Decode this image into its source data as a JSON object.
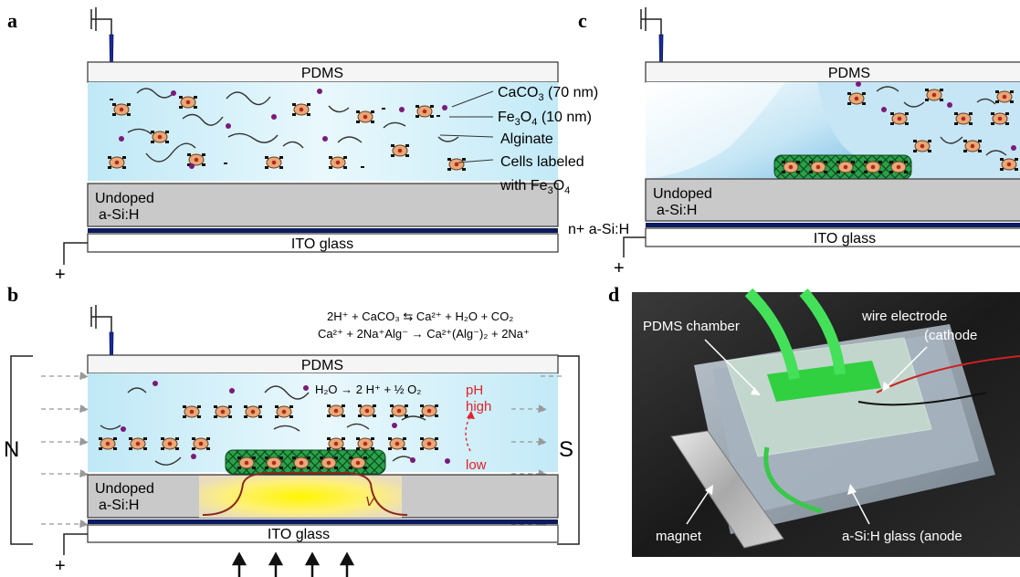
{
  "panels": {
    "a": "a",
    "b": "b",
    "c": "c",
    "d": "d"
  },
  "panel_a": {
    "pdms": "PDMS",
    "undoped_line1": "Undoped",
    "undoped_line2": "a-Si:H",
    "ito": "ITO glass",
    "n_plus": "n+ a-Si:H",
    "legend_caco3_base": "CaCO",
    "legend_caco3_sub": "3",
    "legend_caco3_rest": " (70 nm)",
    "legend_fe_base": "Fe",
    "legend_fe_sub1": "3",
    "legend_fe_mid": "O",
    "legend_fe_sub2": "4",
    "legend_fe_rest": " (10 nm)",
    "legend_alginate": "Alginate",
    "legend_cells_line1": "Cells labeled",
    "legend_cells_line2_base": "with Fe",
    "legend_cells_line2_sub1": "3",
    "legend_cells_line2_mid": "O",
    "legend_cells_line2_sub2": "4",
    "plus": "+"
  },
  "panel_b": {
    "pdms": "PDMS",
    "undoped_line1": "Undoped",
    "undoped_line2": "a-Si:H",
    "ito": "ITO glass",
    "north": "N",
    "south": "S",
    "reaction_water": "H₂O → 2 H⁺ + ½ O₂",
    "eq1": "2H⁺ + CaCO₃ ⇆ Ca²⁺ + H₂O + CO₂",
    "eq2": "Ca²⁺ + 2Na⁺Alg⁻ → Ca²⁺(Alg⁻)₂ + 2Na⁺",
    "ph_label": "pH",
    "high_label": "high",
    "low_label": "low",
    "v_label": "V",
    "plus": "+"
  },
  "panel_c": {
    "pdms": "PDMS",
    "undoped_line1": "Undoped",
    "undoped_line2": "a-Si:H",
    "ito": "ITO glass",
    "plus": "+"
  },
  "panel_d": {
    "pdms_chamber": "PDMS chamber",
    "wire_electrode": "wire electrode",
    "cathode": "(cathode",
    "magnet": "magnet",
    "asi_glass": "a-Si:H glass (anode"
  },
  "colors": {
    "medium": "#cdeef8",
    "silicon": "#c9c9c9",
    "n_layer": "#0c1a5e",
    "cell": "#e7a978",
    "particle": "#7a1a7a",
    "gel": "#2aa14a",
    "field": "#ffef1a",
    "red_text": "#e0222a"
  }
}
